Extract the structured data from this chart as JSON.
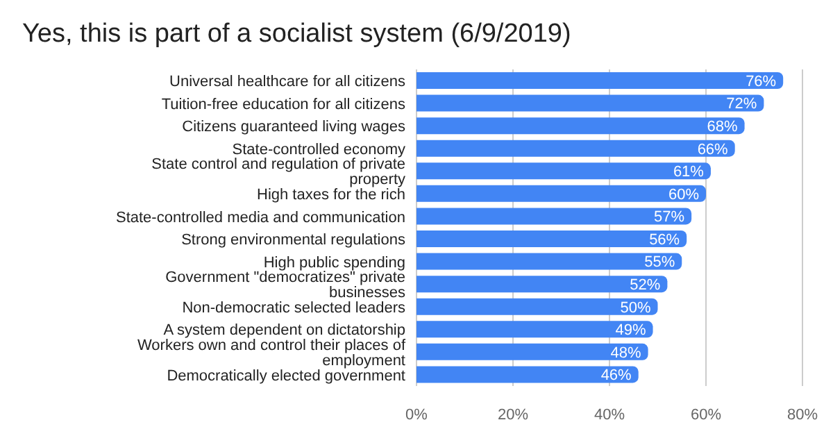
{
  "chart_data": {
    "type": "bar",
    "orientation": "horizontal",
    "title": "Yes, this is part of a socialist system (6/9/2019)",
    "categories": [
      "Universal healthcare for all citizens",
      "Tuition-free education for all citizens",
      "Citizens guaranteed living wages",
      "State-controlled economy",
      "State control and regulation of private property",
      "High taxes for the rich",
      "State-controlled media and communication",
      "Strong environmental regulations",
      "High public spending",
      "Government \"democratizes\" private businesses",
      "Non-democratic selected leaders",
      "A system dependent on dictatorship",
      "Workers own and control their places of employment",
      "Democratically elected government"
    ],
    "values": [
      76,
      72,
      68,
      66,
      61,
      60,
      57,
      56,
      55,
      52,
      50,
      49,
      48,
      46
    ],
    "value_labels": [
      "76%",
      "72%",
      "68%",
      "66%",
      "61%",
      "60%",
      "57%",
      "56%",
      "55%",
      "52%",
      "50%",
      "49%",
      "48%",
      "46%"
    ],
    "color": "#4285f4",
    "xlim": [
      0,
      80
    ],
    "xticks": [
      {
        "value": 0,
        "label": "0%"
      },
      {
        "value": 20,
        "label": "20%"
      },
      {
        "value": 40,
        "label": "40%"
      },
      {
        "value": 60,
        "label": "60%"
      },
      {
        "value": 80,
        "label": "80%"
      }
    ],
    "grid": "x"
  }
}
